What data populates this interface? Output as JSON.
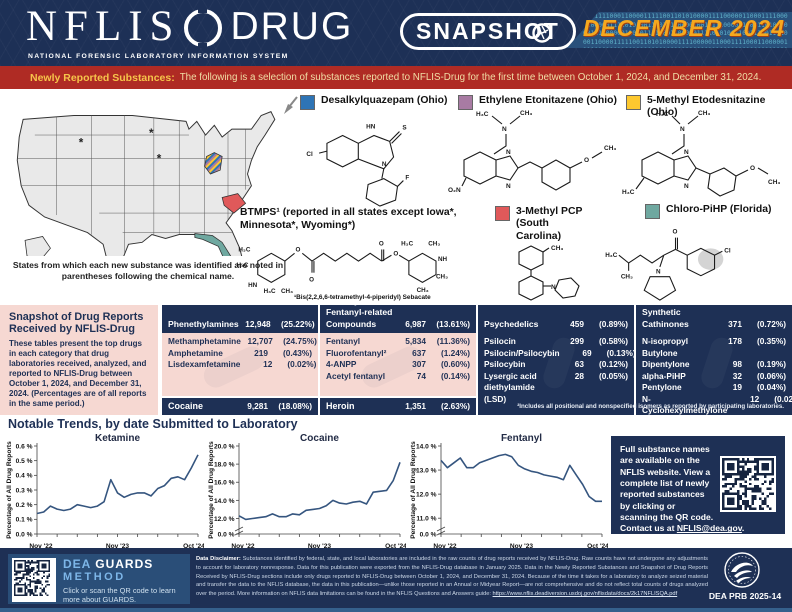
{
  "theme": {
    "navy": "#1e3055",
    "banner_red": "#af2b24",
    "pink": "#f6d8d2",
    "gold": "#f6a81e",
    "chart_line": "#35557f"
  },
  "header": {
    "app": "NFLIS",
    "drug": "DRUG",
    "tagline": "NATIONAL FORENSIC LABORATORY INFORMATION SYSTEM",
    "badge": "SNAPSHOT",
    "issue": "DECEMBER 2024",
    "binary": "1001111000110000111110011010100001111000001100011110001100000111101010011001110000010011111000011100110101000011110000011000111100011000001111010100110011"
  },
  "banner": {
    "title": "Newly Reported Substances:",
    "text": "The following is a selection of substances reported to NFLIS-Drug for the first time between October 1, 2024, and December 31, 2024."
  },
  "map": {
    "caption": "States from which each new substance was identified are noted in parentheses following the chemical name."
  },
  "substances": {
    "legend": [
      {
        "label": "Desalkylquazepam (Ohio)",
        "color": "#2e74b5"
      },
      {
        "label": "Ethylene Etonitazene (Ohio)",
        "color": "#a87ba3"
      },
      {
        "label": "5-Methyl Etodesnitazine (Ohio)",
        "color": "#fdc82f"
      }
    ],
    "btmps_name": "BTMPS¹",
    "btmps_note": "(reported in all states except Iowa*, Minnesota*, Wyoming*)",
    "btmps_footnote": "¹Bis(2,2,6,6-tetramethyl-4-piperidyl) Sebacate",
    "pcp": {
      "label": "3-Methyl PCP (South Carolina)",
      "color": "#e0595a"
    },
    "chloro": {
      "label": "Chloro-PiHP (Florida)",
      "color": "#6fa8a0"
    }
  },
  "snapshot": {
    "title": "Snapshot of Drug Reports Received by NFLIS-Drug",
    "description": "These tables present the top drugs in each category that drug laboratories received, analyzed, and reported to NFLIS-Drug between October 1, 2024, and December 31, 2024. (Percentages are of all reports in the same period.)",
    "groups": [
      {
        "name": "Phenethylamines",
        "count": "12,948",
        "pct": "(25.22%)",
        "rows": [
          {
            "name": "Methamphetamine",
            "count": "12,707",
            "pct": "(24.75%)"
          },
          {
            "name": "Amphetamine",
            "count": "219",
            "pct": "(0.43%)"
          },
          {
            "name": "Lisdexamfetamine",
            "count": "12",
            "pct": "(0.02%)"
          }
        ],
        "footer": {
          "name": "Cocaine",
          "count": "9,281",
          "pct": "(18.08%)"
        }
      },
      {
        "name": "Fentanyl and Fentanyl-related Compounds",
        "count": "6,987",
        "pct": "(13.61%)",
        "rows": [
          {
            "name": "Fentanyl",
            "count": "5,834",
            "pct": "(11.36%)"
          },
          {
            "name": "Fluorofentanyl²",
            "count": "637",
            "pct": "(1.24%)"
          },
          {
            "name": "4-ANPP",
            "count": "307",
            "pct": "(0.60%)"
          },
          {
            "name": "Acetyl fentanyl",
            "count": "74",
            "pct": "(0.14%)"
          }
        ],
        "footer": {
          "name": "Heroin",
          "count": "1,351",
          "pct": "(2.63%)"
        }
      },
      {
        "name": "Psychedelics",
        "count": "459",
        "pct": "(0.89%)",
        "rows": [
          {
            "name": "Psilocin",
            "count": "299",
            "pct": "(0.58%)"
          },
          {
            "name": "Psilocin/Psilocybin",
            "count": "69",
            "pct": "(0.13%)"
          },
          {
            "name": "Psilocybin",
            "count": "63",
            "pct": "(0.12%)"
          },
          {
            "name": "Lysergic acid diethylamide (LSD)",
            "count": "28",
            "pct": "(0.05%)"
          }
        ]
      },
      {
        "name": "Synthetic Cathinones",
        "count": "371",
        "pct": "(0.72%)",
        "rows": [
          {
            "name": "N-isopropyl Butylone",
            "count": "178",
            "pct": "(0.35%)"
          },
          {
            "name": "Dipentylone",
            "count": "98",
            "pct": "(0.19%)"
          },
          {
            "name": "alpha-PiHP",
            "count": "32",
            "pct": "(0.06%)"
          },
          {
            "name": "Pentylone",
            "count": "19",
            "pct": "(0.04%)"
          },
          {
            "name": "N-Cyclohexylmethylone",
            "count": "12",
            "pct": "(0.02%)"
          }
        ]
      }
    ],
    "footnote": "²Includes all positional and nonspecified isomers as reported by participating laboratories."
  },
  "trends": {
    "title": "Notable Trends, by date Submitted to Laboratory"
  },
  "chart_data": [
    {
      "type": "line",
      "title": "Ketamine",
      "ylabel": "Percentage of All Drug Reports",
      "x_ticks": [
        "Nov '22",
        "Nov '23",
        "Oct '24"
      ],
      "ylim": [
        0,
        0.6
      ],
      "axis_break": false,
      "grid": false,
      "y_ticks": [
        {
          "v": 0,
          "label": "0.0 %"
        },
        {
          "v": 0.1,
          "label": "0.1 %"
        },
        {
          "v": 0.2,
          "label": "0.2 %"
        },
        {
          "v": 0.3,
          "label": "0.3 %"
        },
        {
          "v": 0.4,
          "label": "0.4 %"
        },
        {
          "v": 0.5,
          "label": "0.5 %"
        },
        {
          "v": 0.6,
          "label": "0.6 %"
        }
      ],
      "values": [
        0.14,
        0.15,
        0.19,
        0.17,
        0.16,
        0.17,
        0.2,
        0.19,
        0.18,
        0.19,
        0.22,
        0.37,
        0.28,
        0.25,
        0.27,
        0.28,
        0.28,
        0.26,
        0.31,
        0.33,
        0.38,
        0.39,
        0.37,
        0.45,
        0.54
      ]
    },
    {
      "type": "line",
      "title": "Cocaine",
      "ylabel": "Percentage of All Drug Reports",
      "x_ticks": [
        "Nov '22",
        "Nov '23",
        "Oct '24"
      ],
      "ylim": [
        11.5,
        20
      ],
      "axis_break": true,
      "grid": false,
      "y_ticks": [
        {
          "zero": true,
          "label": "0.0 %"
        },
        {
          "v": 12,
          "label": "12.0 %"
        },
        {
          "v": 14,
          "label": "14.0 %"
        },
        {
          "v": 16,
          "label": "16.0 %"
        },
        {
          "v": 18,
          "label": "18.0 %"
        },
        {
          "v": 20,
          "label": "20.0 %"
        }
      ],
      "values": [
        12.3,
        11.9,
        12.0,
        12.1,
        12.2,
        12.5,
        12.2,
        12.2,
        12.5,
        12.4,
        12.9,
        13.0,
        13.1,
        13.4,
        14.0,
        13.7,
        13.6,
        13.8,
        13.9,
        13.6,
        14.9,
        15.0,
        15.1,
        16.2,
        18.2
      ]
    },
    {
      "type": "line",
      "title": "Fentanyl",
      "ylabel": "Percentage of All Drug Reports",
      "x_ticks": [
        "Nov '22",
        "Nov '23",
        "Oct '24"
      ],
      "ylim": [
        10.8,
        14
      ],
      "axis_break": true,
      "grid": false,
      "y_ticks": [
        {
          "zero": true,
          "label": "0.0 %"
        },
        {
          "v": 11,
          "label": "11.0 %"
        },
        {
          "v": 12,
          "label": "12.0 %"
        },
        {
          "v": 13,
          "label": "13.0 %"
        },
        {
          "v": 14,
          "label": "14.0 %"
        }
      ],
      "values": [
        13.4,
        13.1,
        13.3,
        13.5,
        13.1,
        13.1,
        13.3,
        13.4,
        13.5,
        13.6,
        13.65,
        13.55,
        13.2,
        13.05,
        12.95,
        12.9,
        12.8,
        12.75,
        12.7,
        12.6,
        13.2,
        12.8,
        12.4,
        11.9,
        11.7,
        11.7
      ]
    }
  ],
  "info_box": {
    "text": "Full substance names are available on the NFLIS website. View a complete list of newly reported substances by clicking or scanning the QR code. Contact us at ",
    "link": "NFLIS@dea.gov",
    "suffix": "."
  },
  "footer": {
    "guards_dea": "DEA",
    "guards_name": "GUARDS",
    "guards_method": "METHOD",
    "guards_caption": "Click or scan the QR code to learn more about GUARDS.",
    "disclaimer_label": "Data Disclaimer:",
    "disclaimer_text": "Substances identified by federal, state, and local laboratories are included in the raw counts of drug reports received by NFLIS-Drug. Raw counts have not undergone any adjustments to account for laboratory nonresponse. Data for this publication were exported from the NFLIS-Drug database in January 2025. Data in the Newly Reported Substances and Snapshot of Drug Reports Received by NFLIS-Drug sections include only drugs reported to NFLIS-Drug between October 1, 2024, and December 31, 2024. Because of the time it takes for a laboratory to analyze seized material and transfer the data to the NFLIS database, the data in this publication—unlike those reported in an Annual or Midyear Report—are not comprehensive and do not reflect total counts of drugs analyzed over the period. More information on NFLIS data limitations can be found in the NFLIS Questions and Answers guide: ",
    "disclaimer_link": "https://www.nflis.deadiversion.usdoj.gov/nflisdata/docs/2k17NFLISQA.pdf",
    "prb": "DEA PRB 2025-14"
  }
}
